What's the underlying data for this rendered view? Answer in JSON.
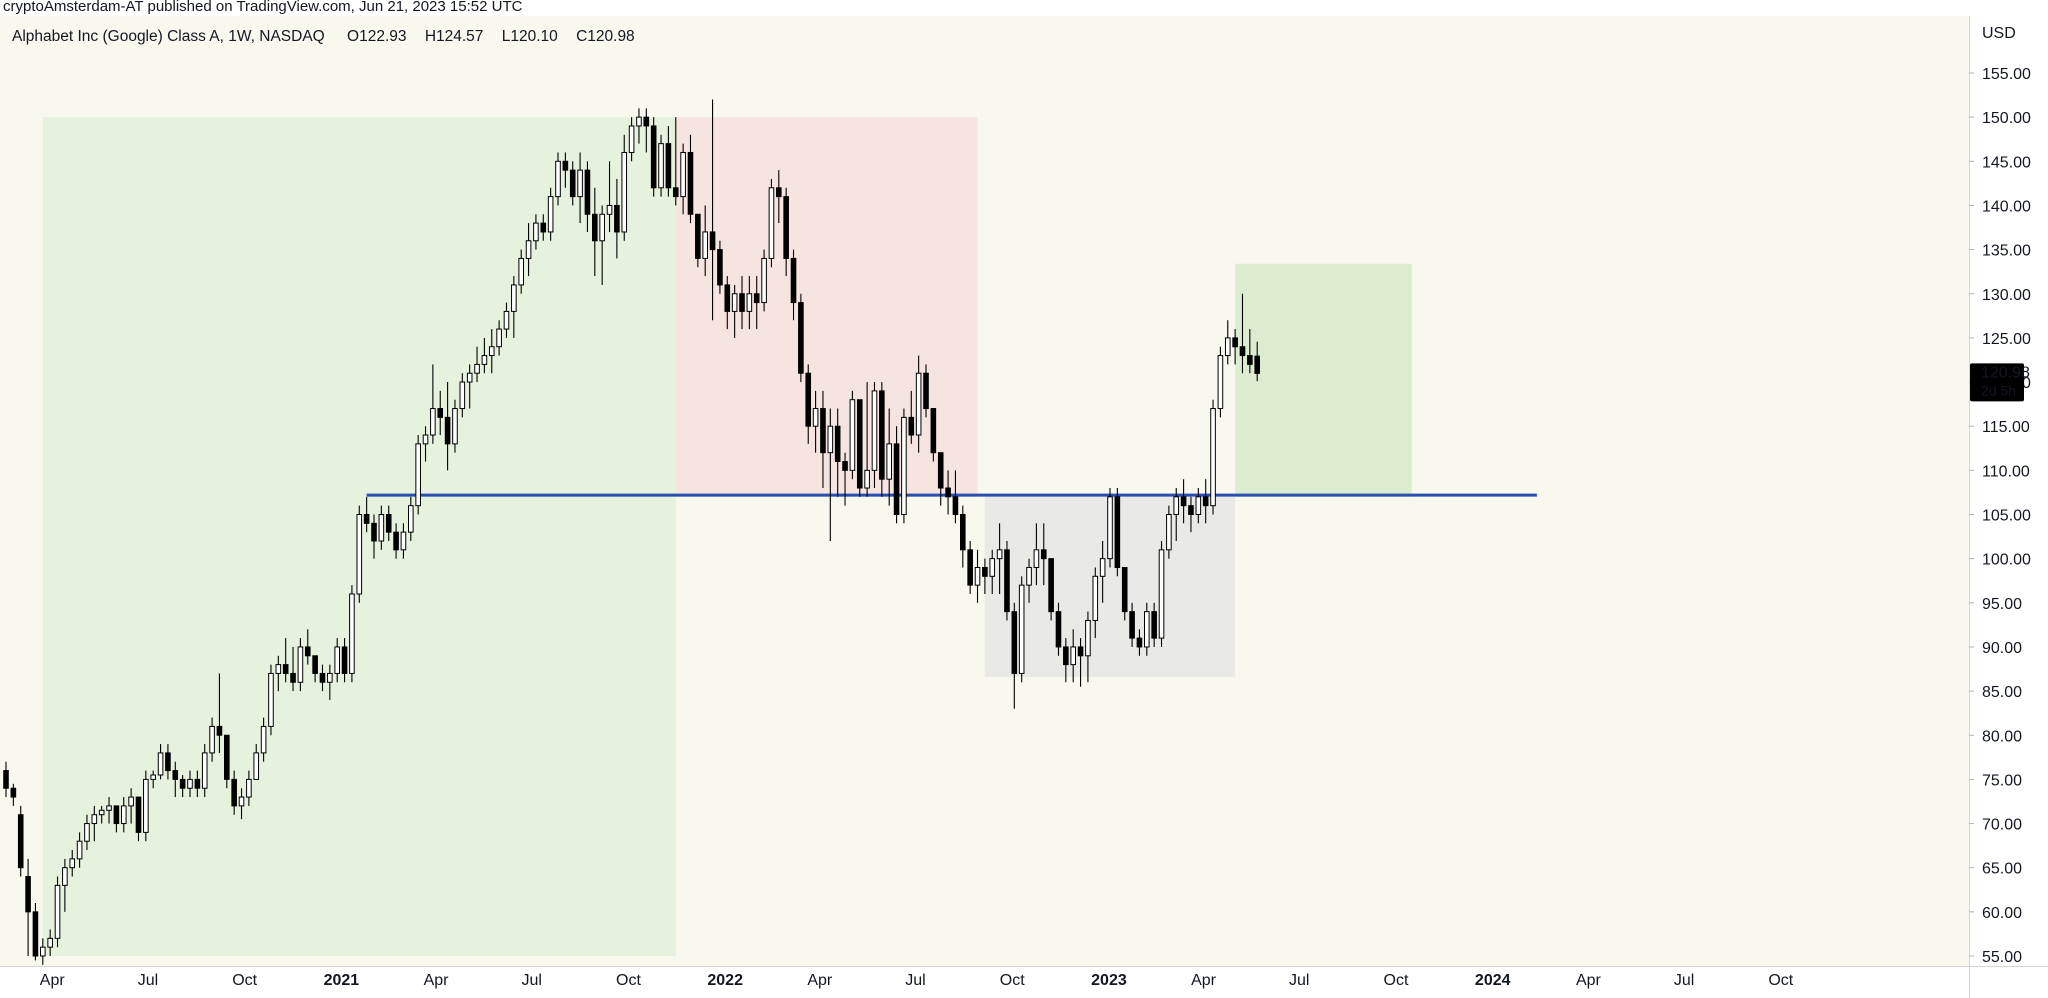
{
  "header": {
    "published_text": "cryptoAmsterdam-AT published on TradingView.com, Jun 21, 2023 15:52 UTC"
  },
  "legend": {
    "symbol": "Alphabet Inc (Google) Class A, 1W, NASDAQ",
    "open": "O122.93",
    "high": "H124.57",
    "low": "L120.10",
    "close": "C120.98"
  },
  "price_badge": {
    "price": "120.98",
    "countdown": "2d 5h"
  },
  "colors": {
    "background": "#f8f8ef",
    "up_candle_fill": "#ffffff",
    "down_candle_fill": "#000000",
    "candle_outline": "#000000",
    "bull_zone": "#e6f1de",
    "bear_zone": "#f6e4e0",
    "range_zone": "#e9e9e6",
    "target_zone": "#dceccf",
    "support_line": "#2a4db0",
    "badge_bg": "#000000",
    "badge_text": "#ffffff"
  },
  "chart_data": {
    "type": "candlestick",
    "interval": "1W",
    "currency": "USD",
    "y_axis": {
      "unit_label": "USD",
      "range": [
        55,
        158
      ],
      "ticks": [
        "55.00",
        "60.00",
        "65.00",
        "70.00",
        "75.00",
        "80.00",
        "85.00",
        "90.00",
        "95.00",
        "100.00",
        "105.00",
        "110.00",
        "115.00",
        "120.00",
        "125.00",
        "130.00",
        "135.00",
        "140.00",
        "145.00",
        "150.00",
        "155.00"
      ]
    },
    "x_axis": {
      "start_date": "2020-02-17",
      "ticks": [
        {
          "label": "Apr",
          "date": "2020-04-01",
          "bold": false
        },
        {
          "label": "Jul",
          "date": "2020-07-01",
          "bold": false
        },
        {
          "label": "Oct",
          "date": "2020-10-01",
          "bold": false
        },
        {
          "label": "2021",
          "date": "2021-01-01",
          "bold": true
        },
        {
          "label": "Apr",
          "date": "2021-04-01",
          "bold": false
        },
        {
          "label": "Jul",
          "date": "2021-07-01",
          "bold": false
        },
        {
          "label": "Oct",
          "date": "2021-10-01",
          "bold": false
        },
        {
          "label": "2022",
          "date": "2022-01-01",
          "bold": true
        },
        {
          "label": "Apr",
          "date": "2022-04-01",
          "bold": false
        },
        {
          "label": "Jul",
          "date": "2022-07-01",
          "bold": false
        },
        {
          "label": "Oct",
          "date": "2022-10-01",
          "bold": false
        },
        {
          "label": "2023",
          "date": "2023-01-01",
          "bold": true
        },
        {
          "label": "Apr",
          "date": "2023-04-01",
          "bold": false
        },
        {
          "label": "Jul",
          "date": "2023-07-01",
          "bold": false
        },
        {
          "label": "Oct",
          "date": "2023-10-01",
          "bold": false
        },
        {
          "label": "2024",
          "date": "2024-01-01",
          "bold": true
        },
        {
          "label": "Apr",
          "date": "2024-04-01",
          "bold": false
        },
        {
          "label": "Jul",
          "date": "2024-07-01",
          "bold": false
        },
        {
          "label": "Oct",
          "date": "2024-10-01",
          "bold": false
        }
      ]
    },
    "candles": [
      [
        76,
        77,
        73,
        74
      ],
      [
        74,
        74.5,
        72,
        73
      ],
      [
        71,
        72,
        64,
        65
      ],
      [
        64,
        66,
        55,
        60
      ],
      [
        60,
        61,
        54.5,
        55
      ],
      [
        55,
        57,
        54,
        56
      ],
      [
        56,
        58,
        55,
        57
      ],
      [
        57,
        64,
        56,
        63
      ],
      [
        63,
        66,
        60,
        65
      ],
      [
        65,
        67,
        64,
        66
      ],
      [
        66,
        69,
        65,
        68
      ],
      [
        68,
        71,
        67,
        70
      ],
      [
        70,
        72,
        68,
        71
      ],
      [
        71,
        72,
        70,
        71.5
      ],
      [
        71.5,
        73,
        70,
        72
      ],
      [
        72,
        72,
        69,
        70
      ],
      [
        70,
        73,
        69,
        72
      ],
      [
        72,
        74,
        70,
        73
      ],
      [
        73,
        72.5,
        68,
        69
      ],
      [
        69,
        76,
        68,
        75
      ],
      [
        75,
        76,
        74,
        75.5
      ],
      [
        75.5,
        79,
        75,
        78
      ],
      [
        78,
        79,
        75,
        76
      ],
      [
        76,
        77,
        73,
        75
      ],
      [
        75,
        75.5,
        73,
        74
      ],
      [
        74,
        76,
        73,
        75
      ],
      [
        75,
        76,
        73,
        74
      ],
      [
        74,
        79,
        73,
        78
      ],
      [
        78,
        82,
        77,
        81
      ],
      [
        81,
        87,
        78,
        80
      ],
      [
        80,
        80,
        74,
        75
      ],
      [
        75,
        76,
        71,
        72
      ],
      [
        72,
        74,
        70.5,
        73
      ],
      [
        73,
        76,
        72,
        75
      ],
      [
        75,
        79,
        75,
        78
      ],
      [
        78,
        82,
        77,
        81
      ],
      [
        81,
        88,
        80,
        87
      ],
      [
        87,
        89,
        85,
        88
      ],
      [
        88,
        91,
        86,
        87
      ],
      [
        87,
        90,
        85,
        86
      ],
      [
        86,
        91,
        85,
        90
      ],
      [
        90,
        92,
        88,
        89
      ],
      [
        89,
        89,
        86,
        87
      ],
      [
        87,
        88,
        85,
        86
      ],
      [
        86,
        88,
        84,
        87
      ],
      [
        87,
        91,
        86,
        90
      ],
      [
        90,
        91,
        86,
        87
      ],
      [
        87,
        97,
        86,
        96
      ],
      [
        96,
        106,
        95,
        105
      ],
      [
        105,
        107,
        103,
        104
      ],
      [
        104,
        105,
        100,
        102
      ],
      [
        102,
        106,
        101,
        105
      ],
      [
        105,
        106,
        102,
        103
      ],
      [
        103,
        104,
        100,
        101
      ],
      [
        101,
        104,
        100,
        103
      ],
      [
        103,
        107,
        102,
        106
      ],
      [
        106,
        114,
        105,
        113
      ],
      [
        113,
        115,
        111,
        114
      ],
      [
        114,
        122,
        113,
        117
      ],
      [
        117,
        119,
        114,
        116
      ],
      [
        116,
        120,
        110,
        113
      ],
      [
        113,
        118,
        112,
        117
      ],
      [
        117,
        121,
        116,
        120
      ],
      [
        120,
        122,
        117,
        121
      ],
      [
        121,
        124,
        120,
        122
      ],
      [
        122,
        125,
        121,
        123
      ],
      [
        123,
        126,
        121,
        124
      ],
      [
        124,
        127,
        123,
        126
      ],
      [
        126,
        129,
        125,
        128
      ],
      [
        128,
        132,
        125,
        131
      ],
      [
        131,
        135,
        130,
        134
      ],
      [
        134,
        138,
        132,
        136
      ],
      [
        136,
        139,
        135,
        138
      ],
      [
        138,
        139,
        136,
        137
      ],
      [
        137,
        142,
        136,
        141
      ],
      [
        141,
        146,
        140,
        145
      ],
      [
        145,
        146,
        142,
        144
      ],
      [
        144,
        145,
        140,
        141
      ],
      [
        141,
        146,
        138,
        144
      ],
      [
        144,
        145,
        137,
        139
      ],
      [
        139,
        142,
        132,
        136
      ],
      [
        136,
        140,
        131,
        139
      ],
      [
        139,
        145,
        137,
        140
      ],
      [
        140,
        143,
        134,
        137
      ],
      [
        137,
        148,
        136,
        146
      ],
      [
        146,
        150,
        145,
        149
      ],
      [
        149,
        151,
        147,
        150
      ],
      [
        150,
        151,
        146,
        149
      ],
      [
        149,
        150,
        141,
        142
      ],
      [
        142,
        148,
        141,
        147
      ],
      [
        147,
        149,
        141,
        142
      ],
      [
        142,
        150,
        140,
        141
      ],
      [
        141,
        147,
        139,
        146
      ],
      [
        146,
        148,
        138,
        139
      ],
      [
        139,
        139,
        133,
        134
      ],
      [
        134,
        140,
        132,
        137
      ],
      [
        137,
        152,
        127,
        135
      ],
      [
        135,
        136,
        130,
        131
      ],
      [
        131,
        132,
        126,
        128
      ],
      [
        128,
        131,
        125,
        130
      ],
      [
        130,
        132,
        126,
        128
      ],
      [
        128,
        132,
        126,
        130
      ],
      [
        130,
        132,
        126,
        129
      ],
      [
        129,
        135,
        128,
        134
      ],
      [
        134,
        143,
        133,
        142
      ],
      [
        142,
        144,
        138,
        141
      ],
      [
        141,
        142,
        132,
        134
      ],
      [
        134,
        135,
        127,
        129
      ],
      [
        129,
        130,
        120,
        121
      ],
      [
        121,
        122,
        113,
        115
      ],
      [
        115,
        119,
        112,
        117
      ],
      [
        117,
        119,
        108,
        112
      ],
      [
        112,
        117,
        102,
        115
      ],
      [
        115,
        117,
        107,
        111
      ],
      [
        111,
        112,
        106,
        110
      ],
      [
        110,
        119,
        109,
        118
      ],
      [
        118,
        118,
        107,
        108
      ],
      [
        108,
        120,
        107,
        110
      ],
      [
        110,
        120,
        108,
        119
      ],
      [
        119,
        120,
        107,
        109
      ],
      [
        109,
        117,
        106,
        113
      ],
      [
        113,
        115,
        104,
        105
      ],
      [
        105,
        117,
        104,
        116
      ],
      [
        116,
        119,
        113,
        114
      ],
      [
        114,
        123,
        112,
        121
      ],
      [
        121,
        122,
        116,
        117
      ],
      [
        117,
        117,
        111,
        112
      ],
      [
        112,
        112,
        106,
        108
      ],
      [
        108,
        110,
        105,
        107
      ],
      [
        107,
        110,
        104,
        105
      ],
      [
        105,
        106,
        99,
        101
      ],
      [
        101,
        102,
        96,
        97
      ],
      [
        97,
        101,
        95,
        99
      ],
      [
        99,
        100,
        96,
        98
      ],
      [
        98,
        101,
        96,
        100
      ],
      [
        100,
        104,
        96,
        101
      ],
      [
        101,
        102,
        93,
        94
      ],
      [
        94,
        95,
        83,
        87
      ],
      [
        87,
        98,
        86,
        97
      ],
      [
        97,
        100,
        95,
        99
      ],
      [
        99,
        104,
        97,
        101
      ],
      [
        101,
        104,
        97,
        100
      ],
      [
        100,
        100,
        93,
        94
      ],
      [
        94,
        95,
        89,
        90
      ],
      [
        90,
        91,
        86,
        88
      ],
      [
        88,
        92,
        86,
        90
      ],
      [
        90,
        91,
        85.5,
        89
      ],
      [
        89,
        94,
        86,
        93
      ],
      [
        93,
        99,
        91,
        98
      ],
      [
        98,
        102,
        95,
        100
      ],
      [
        100,
        108,
        99,
        107
      ],
      [
        107,
        108,
        98,
        99
      ],
      [
        99,
        99,
        93,
        94
      ],
      [
        94,
        95,
        90,
        91
      ],
      [
        91,
        92,
        89,
        90
      ],
      [
        90,
        95,
        89,
        94
      ],
      [
        94,
        95,
        90,
        91
      ],
      [
        91,
        102,
        90,
        101
      ],
      [
        101,
        106,
        100,
        105
      ],
      [
        105,
        108,
        102,
        107
      ],
      [
        107,
        109,
        104,
        106
      ],
      [
        106,
        107,
        103,
        105
      ],
      [
        105,
        108,
        104,
        107
      ],
      [
        107,
        109,
        104,
        106
      ],
      [
        106,
        118,
        105,
        117
      ],
      [
        117,
        124,
        116,
        123
      ],
      [
        123,
        127,
        122,
        125
      ],
      [
        125,
        126,
        122,
        124
      ],
      [
        124,
        130,
        121,
        123
      ],
      [
        123,
        126,
        121,
        122
      ],
      [
        122.93,
        124.57,
        120.1,
        120.98
      ]
    ],
    "zones": [
      {
        "name": "uptrend-zone",
        "color_key": "bull_zone",
        "from": "2020-03-23",
        "to": "2021-11-15",
        "low": 55,
        "high": 150
      },
      {
        "name": "downtrend-zone",
        "color_key": "bear_zone",
        "from": "2021-11-15",
        "to": "2022-08-29",
        "low": 107,
        "high": 150
      },
      {
        "name": "consolidation-zone",
        "color_key": "range_zone",
        "from": "2022-09-05",
        "to": "2023-05-01",
        "low": 86.6,
        "high": 107
      },
      {
        "name": "target-zone",
        "color_key": "target_zone",
        "from": "2023-05-01",
        "to": "2023-10-16",
        "low": 107,
        "high": 133.4
      }
    ],
    "horizontal_lines": [
      {
        "name": "support-resistance-line",
        "price": 107.2,
        "from": "2021-01-25",
        "to": "2024-02-12",
        "color_key": "support_line"
      }
    ]
  }
}
